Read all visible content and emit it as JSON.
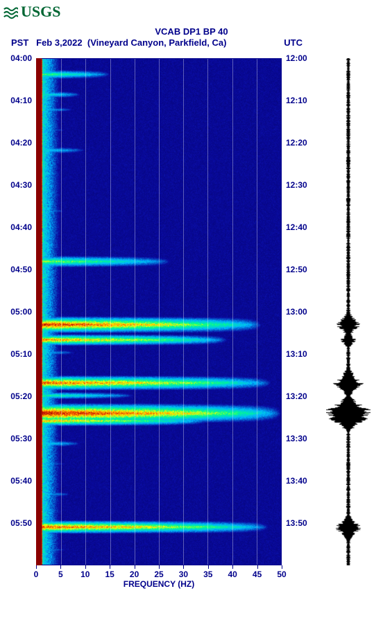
{
  "logo": {
    "text": "USGS",
    "color": "#006633"
  },
  "header": {
    "title": "VCAB DP1 BP 40",
    "left_tz": "PST",
    "date": "Feb 3,2022",
    "location": "(Vineyard Canyon, Parkfield, Ca)",
    "right_tz": "UTC",
    "text_color": "#00008b"
  },
  "spectrogram": {
    "type": "spectrogram",
    "background_color": "#0a0aa0",
    "xlabel": "FREQUENCY (HZ)",
    "xlim": [
      0,
      50
    ],
    "xtick_step": 5,
    "xticks": [
      0,
      5,
      10,
      15,
      20,
      25,
      30,
      35,
      40,
      45,
      50
    ],
    "grid_color": "rgba(255,255,255,0.35)",
    "left_edge_color": "#8b0000",
    "y_left_label_header": "PST",
    "y_right_label_header": "UTC",
    "y_left_ticks": [
      "04:00",
      "04:10",
      "04:20",
      "04:30",
      "04:40",
      "04:50",
      "05:00",
      "05:10",
      "05:20",
      "05:30",
      "05:40",
      "05:50"
    ],
    "y_right_ticks": [
      "12:00",
      "12:10",
      "12:20",
      "12:30",
      "12:40",
      "12:50",
      "13:00",
      "13:10",
      "13:20",
      "13:30",
      "13:40",
      "13:50"
    ],
    "y_tick_positions_pct": [
      0,
      8.33,
      16.67,
      25,
      33.33,
      41.67,
      50,
      58.33,
      66.67,
      75,
      83.33,
      91.67
    ],
    "minor_tick_count_between": 10,
    "label_fontsize": 12,
    "title_fontsize": 13,
    "tick_color": "#8b0000",
    "axis_color": "#00008b",
    "colormap_stops": [
      {
        "v": 0.0,
        "c": "#00004c"
      },
      {
        "v": 0.15,
        "c": "#0a0aa0"
      },
      {
        "v": 0.35,
        "c": "#00b7ff"
      },
      {
        "v": 0.55,
        "c": "#00ff88"
      },
      {
        "v": 0.7,
        "c": "#ffff00"
      },
      {
        "v": 0.85,
        "c": "#ff6600"
      },
      {
        "v": 1.0,
        "c": "#aa0000"
      }
    ],
    "events": [
      {
        "t_pct": 3,
        "intensity": 0.6,
        "freq_extent_pct": 30,
        "width_pct": 1.2
      },
      {
        "t_pct": 7,
        "intensity": 0.5,
        "freq_extent_pct": 18,
        "width_pct": 1.0
      },
      {
        "t_pct": 10,
        "intensity": 0.4,
        "freq_extent_pct": 15,
        "width_pct": 0.8
      },
      {
        "t_pct": 14,
        "intensity": 0.35,
        "freq_extent_pct": 12,
        "width_pct": 0.7
      },
      {
        "t_pct": 18,
        "intensity": 0.45,
        "freq_extent_pct": 20,
        "width_pct": 1.0
      },
      {
        "t_pct": 24,
        "intensity": 0.3,
        "freq_extent_pct": 10,
        "width_pct": 0.7
      },
      {
        "t_pct": 30,
        "intensity": 0.35,
        "freq_extent_pct": 12,
        "width_pct": 0.8
      },
      {
        "t_pct": 40,
        "intensity": 0.65,
        "freq_extent_pct": 55,
        "width_pct": 1.5
      },
      {
        "t_pct": 44,
        "intensity": 0.3,
        "freq_extent_pct": 12,
        "width_pct": 0.8
      },
      {
        "t_pct": 52.5,
        "intensity": 0.95,
        "freq_extent_pct": 92,
        "width_pct": 2.0
      },
      {
        "t_pct": 55.5,
        "intensity": 0.85,
        "freq_extent_pct": 78,
        "width_pct": 1.4
      },
      {
        "t_pct": 58,
        "intensity": 0.4,
        "freq_extent_pct": 16,
        "width_pct": 0.8
      },
      {
        "t_pct": 64,
        "intensity": 0.9,
        "freq_extent_pct": 96,
        "width_pct": 1.8
      },
      {
        "t_pct": 66.5,
        "intensity": 0.55,
        "freq_extent_pct": 40,
        "width_pct": 1.0
      },
      {
        "t_pct": 70,
        "intensity": 1.0,
        "freq_extent_pct": 100,
        "width_pct": 2.4
      },
      {
        "t_pct": 71.5,
        "intensity": 0.8,
        "freq_extent_pct": 70,
        "width_pct": 1.3
      },
      {
        "t_pct": 76,
        "intensity": 0.45,
        "freq_extent_pct": 18,
        "width_pct": 1.0
      },
      {
        "t_pct": 80,
        "intensity": 0.35,
        "freq_extent_pct": 12,
        "width_pct": 0.7
      },
      {
        "t_pct": 86,
        "intensity": 0.4,
        "freq_extent_pct": 14,
        "width_pct": 0.8
      },
      {
        "t_pct": 92.5,
        "intensity": 0.9,
        "freq_extent_pct": 95,
        "width_pct": 1.6
      },
      {
        "t_pct": 97,
        "intensity": 0.35,
        "freq_extent_pct": 12,
        "width_pct": 0.8
      }
    ],
    "low_freq_band": {
      "freq_max_pct": 12,
      "base_intensity": 0.55
    }
  },
  "waveform": {
    "type": "waveform",
    "color": "#000000",
    "baseline_amp": 0.06,
    "events": [
      {
        "t_pct": 52.5,
        "amp": 0.45,
        "dur_pct": 3
      },
      {
        "t_pct": 55.5,
        "amp": 0.3,
        "dur_pct": 2
      },
      {
        "t_pct": 64,
        "amp": 0.55,
        "dur_pct": 3.5
      },
      {
        "t_pct": 70,
        "amp": 1.0,
        "dur_pct": 4
      },
      {
        "t_pct": 71.5,
        "amp": 0.4,
        "dur_pct": 2
      },
      {
        "t_pct": 92.5,
        "amp": 0.5,
        "dur_pct": 3
      }
    ]
  },
  "footer": {
    "mark": ""
  }
}
